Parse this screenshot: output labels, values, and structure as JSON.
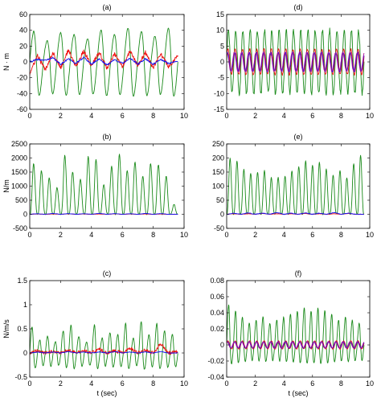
{
  "chart_data": [
    {
      "type": "line",
      "title": "(a)",
      "ylabel": "N · m",
      "xlabel": "",
      "xlim": [
        0,
        10
      ],
      "ylim": [
        -60,
        60
      ],
      "xticks": [
        0,
        2,
        4,
        6,
        8,
        10
      ],
      "yticks": [
        -60,
        -40,
        -20,
        0,
        20,
        40,
        60
      ],
      "grid": false,
      "x": [
        0,
        0.5,
        1,
        1.5,
        2,
        2.5,
        3,
        3.5,
        4,
        4.5,
        5,
        5.5,
        6,
        6.5,
        7,
        7.5,
        8,
        8.5,
        9,
        9.5
      ],
      "series": [
        {
          "color": "#1a8a1a",
          "values": [
            5,
            40,
            -30,
            45,
            -40,
            50,
            -20,
            40,
            -50,
            38,
            -45,
            35,
            -30,
            50,
            -25,
            45,
            -48,
            40,
            -30,
            20
          ],
          "peaks": [
            50,
            35,
            48,
            45,
            38,
            52,
            45,
            55,
            50,
            42,
            55
          ]
        },
        {
          "color": "#ee1111",
          "values": [
            -15,
            8,
            -10,
            12,
            -8,
            15,
            -6,
            14,
            -5,
            12,
            -8,
            10,
            -6,
            14,
            -5,
            12,
            -8,
            10,
            -6,
            5
          ]
        },
        {
          "color": "#1111ee",
          "values": [
            0,
            3,
            2,
            5,
            -3,
            4,
            -2,
            6,
            -3,
            4,
            -4,
            3,
            -2,
            5,
            -3,
            4,
            -3,
            3,
            -2,
            1
          ]
        }
      ]
    },
    {
      "type": "line",
      "title": "(d)",
      "ylabel": "",
      "xlabel": "",
      "xlim": [
        0,
        10
      ],
      "ylim": [
        -15,
        15
      ],
      "xticks": [
        0,
        2,
        4,
        6,
        8,
        10
      ],
      "yticks": [
        -15,
        -10,
        -5,
        0,
        5,
        10,
        15
      ],
      "grid": false,
      "x": [
        0,
        0.5,
        1,
        1.5,
        2,
        2.5,
        3,
        3.5,
        4,
        4.5,
        5,
        5.5,
        6,
        6.5,
        7,
        7.5,
        8,
        8.5,
        9,
        9.5
      ],
      "series": [
        {
          "color": "#1a8a1a",
          "values": [
            2,
            11,
            -10,
            10,
            -8,
            10,
            -9,
            11,
            -8,
            10,
            -9,
            11,
            -8,
            10,
            -9,
            11,
            -8,
            10,
            -8,
            5
          ],
          "amplitude": 10
        },
        {
          "color": "#ee1111",
          "values": [
            -5,
            4,
            -4,
            4,
            -4,
            5,
            -4,
            4,
            -4,
            5,
            -4,
            4,
            -4,
            5,
            -4,
            4,
            -4,
            5,
            -3,
            2
          ],
          "amplitude": 4
        },
        {
          "color": "#1111ee",
          "values": [
            0,
            2,
            -2,
            3,
            -2,
            3,
            -3,
            3,
            -2,
            3,
            -3,
            3,
            -2,
            3,
            -3,
            3,
            -2,
            3,
            -2,
            1
          ],
          "amplitude": 3
        },
        {
          "color": "#aa1199",
          "values": [
            0,
            2,
            -2,
            3,
            -2,
            3,
            -3,
            3,
            -2,
            3,
            -3,
            3,
            -2,
            3,
            -3,
            3,
            -2,
            3,
            -2,
            1
          ],
          "amplitude": 3
        }
      ]
    },
    {
      "type": "line",
      "title": "(b)",
      "ylabel": "N/m",
      "xlabel": "",
      "xlim": [
        0,
        10
      ],
      "ylim": [
        -500,
        2500
      ],
      "xticks": [
        0,
        2,
        4,
        6,
        8,
        10
      ],
      "yticks": [
        -500,
        0,
        500,
        1000,
        1500,
        2000,
        2500
      ],
      "grid": false,
      "x": [
        0,
        0.5,
        1,
        1.5,
        2,
        2.5,
        3,
        3.5,
        4,
        4.5,
        5,
        5.5,
        6,
        6.5,
        7,
        7.5,
        8,
        8.5,
        9,
        9.5
      ],
      "series": [
        {
          "color": "#1a8a1a",
          "values": [
            0,
            1800,
            100,
            1200,
            50,
            2050,
            80,
            1500,
            60,
            1900,
            40,
            2150,
            60,
            1700,
            50,
            1750,
            40,
            1800,
            60,
            200
          ],
          "peaks": [
            1800,
            1550,
            1300,
            950,
            2100,
            1500,
            1250,
            2050,
            1950,
            1050,
            1700,
            2150,
            1550,
            1850,
            1350,
            1800,
            1750,
            1350,
            350
          ]
        },
        {
          "color": "#ee1111",
          "values": [
            0,
            10,
            0,
            10,
            0,
            15,
            0,
            10,
            0,
            10,
            0,
            15,
            0,
            10,
            0,
            10,
            0,
            10,
            0,
            0
          ]
        },
        {
          "color": "#1111ee",
          "values": [
            0,
            20,
            0,
            30,
            0,
            25,
            0,
            20,
            0,
            30,
            0,
            25,
            0,
            20,
            0,
            30,
            0,
            25,
            0,
            0
          ]
        }
      ]
    },
    {
      "type": "line",
      "title": "(e)",
      "ylabel": "",
      "xlabel": "",
      "xlim": [
        0,
        10
      ],
      "ylim": [
        -50,
        250
      ],
      "xticks": [
        0,
        2,
        4,
        6,
        8,
        10
      ],
      "yticks": [
        -50,
        0,
        50,
        100,
        150,
        200,
        250
      ],
      "grid": false,
      "x": [
        0,
        0.5,
        1,
        1.5,
        2,
        2.5,
        3,
        3.5,
        4,
        4.5,
        5,
        5.5,
        6,
        6.5,
        7,
        7.5,
        8,
        8.5,
        9,
        9.5
      ],
      "series": [
        {
          "color": "#1a8a1a",
          "values": [
            0,
            200,
            10,
            170,
            5,
            150,
            10,
            160,
            5,
            140,
            10,
            170,
            5,
            180,
            10,
            160,
            5,
            140,
            10,
            200
          ],
          "peaks": [
            200,
            190,
            160,
            145,
            150,
            155,
            130,
            130,
            135,
            155,
            170,
            190,
            175,
            185,
            160,
            140,
            155,
            130,
            180,
            210
          ]
        },
        {
          "color": "#ee1111",
          "values": [
            0,
            2,
            0,
            2,
            0,
            3,
            0,
            2,
            0,
            2,
            0,
            3,
            0,
            2,
            0,
            2,
            0,
            3,
            0,
            0
          ]
        },
        {
          "color": "#1111ee",
          "values": [
            0,
            4,
            0,
            5,
            0,
            4,
            0,
            6,
            0,
            4,
            0,
            5,
            0,
            4,
            0,
            6,
            0,
            4,
            0,
            0
          ]
        }
      ]
    },
    {
      "type": "line",
      "title": "(c)",
      "ylabel": "N/m/s",
      "xlabel": "t (sec)",
      "xlim": [
        0,
        10
      ],
      "ylim": [
        -0.5,
        1.5
      ],
      "xticks": [
        0,
        2,
        4,
        6,
        8,
        10
      ],
      "yticks": [
        -0.5,
        0,
        0.5,
        1,
        1.5
      ],
      "grid": false,
      "x": [
        0,
        0.5,
        1,
        1.5,
        2,
        2.5,
        3,
        3.5,
        4,
        4.5,
        5,
        5.5,
        6,
        6.5,
        7,
        7.5,
        8,
        8.5,
        9,
        9.5
      ],
      "series": [
        {
          "color": "#1a8a1a",
          "values": [
            0,
            0.7,
            -0.1,
            0.5,
            -0.2,
            0.8,
            -0.3,
            0.6,
            -0.2,
            0.75,
            -0.3,
            0.8,
            -0.2,
            0.85,
            -0.3,
            0.8,
            -0.2,
            0.75,
            -0.2,
            0.5
          ],
          "peaks": [
            0.7,
            0.35,
            0.45,
            0.3,
            0.6,
            0.75,
            0.45,
            0.3,
            0.75,
            0.4,
            0.55,
            0.5,
            0.8,
            0.4,
            0.85,
            0.5,
            0.8,
            0.6,
            0.5
          ]
        },
        {
          "color": "#ee1111",
          "values": [
            0,
            0.05,
            0,
            0.04,
            0,
            0.06,
            0,
            0.05,
            0,
            0.08,
            0,
            0.05,
            0,
            0.1,
            0,
            0.06,
            0,
            0.2,
            0,
            0.02
          ]
        },
        {
          "color": "#1111ee",
          "values": [
            0,
            0.02,
            0,
            0.02,
            0,
            0.03,
            0,
            0.02,
            0,
            0.02,
            0,
            0.03,
            0,
            0.02,
            0,
            0.02,
            0,
            0.03,
            0,
            0
          ]
        }
      ]
    },
    {
      "type": "line",
      "title": "(f)",
      "ylabel": "",
      "xlabel": "t (sec)",
      "xlim": [
        0,
        10
      ],
      "ylim": [
        -0.04,
        0.08
      ],
      "xticks": [
        0,
        2,
        4,
        6,
        8,
        10
      ],
      "yticks": [
        -0.04,
        -0.02,
        0,
        0.02,
        0.04,
        0.06,
        0.08
      ],
      "grid": false,
      "x": [
        0,
        0.5,
        1,
        1.5,
        2,
        2.5,
        3,
        3.5,
        4,
        4.5,
        5,
        5.5,
        6,
        6.5,
        7,
        7.5,
        8,
        8.5,
        9,
        9.5
      ],
      "series": [
        {
          "color": "#1a8a1a",
          "values": [
            0,
            0.06,
            -0.02,
            0.05,
            -0.015,
            0.04,
            -0.02,
            0.05,
            -0.015,
            0.055,
            -0.02,
            0.06,
            -0.015,
            0.06,
            -0.02,
            0.055,
            -0.015,
            0.05,
            -0.02,
            0.04
          ],
          "peaks": [
            0.065,
            0.055,
            0.045,
            0.035,
            0.04,
            0.045,
            0.035,
            0.04,
            0.045,
            0.05,
            0.055,
            0.06,
            0.055,
            0.06,
            0.055,
            0.05,
            0.04,
            0.045,
            0.04,
            0.035
          ]
        },
        {
          "color": "#ee1111",
          "values": [
            0,
            0.005,
            -0.003,
            0.005,
            -0.003,
            0.006,
            -0.003,
            0.005,
            -0.003,
            0.006,
            -0.003,
            0.005,
            -0.003,
            0.006,
            -0.003,
            0.005,
            -0.003,
            0.006,
            -0.003,
            0.002
          ],
          "amplitude": 0.005
        },
        {
          "color": "#1111ee",
          "values": [
            0,
            0.004,
            -0.002,
            0.004,
            -0.002,
            0.004,
            -0.002,
            0.004,
            -0.002,
            0.004,
            -0.002,
            0.004,
            -0.002,
            0.004,
            -0.002,
            0.004,
            -0.002,
            0.004,
            -0.002,
            0.001
          ],
          "amplitude": 0.004
        },
        {
          "color": "#aa1199",
          "values": [
            0,
            0.004,
            -0.002,
            0.004,
            -0.002,
            0.004,
            -0.002,
            0.004,
            -0.002,
            0.004,
            -0.002,
            0.004,
            -0.002,
            0.004,
            -0.002,
            0.004,
            -0.002,
            0.004,
            -0.002,
            0.001
          ],
          "amplitude": 0.004
        }
      ]
    }
  ]
}
